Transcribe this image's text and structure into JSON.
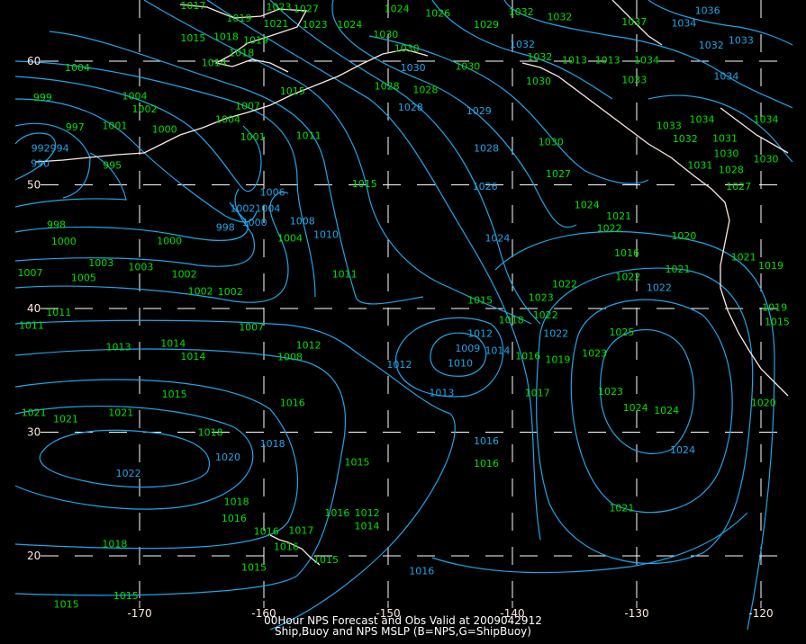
{
  "title": "00Hour NPS Forecast and Obs Valid at 2009042912",
  "subtitle": "Ship,Buoy and NPS MSLP (B=NPS,G=ShipBuoy)",
  "colors": {
    "background": "#000000",
    "nps_contours": "#1ea6e8",
    "ship_buoy_obs": "#00e000",
    "grid_coast": "#ffffff"
  },
  "map": {
    "projection": "Mercator",
    "lon_ticks": [
      -170,
      -160,
      -150,
      -140,
      -130,
      -120
    ],
    "lat_ticks": [
      60,
      50,
      40,
      30,
      20
    ],
    "lon_labels": [
      "-170",
      "-160",
      "-150",
      "-140",
      "-130",
      "-120"
    ],
    "lat_labels": [
      "60",
      "50",
      "40",
      "30",
      "20"
    ]
  },
  "nps_labels": [
    [
      "992994",
      -177.2,
      53.0
    ],
    [
      "990",
      -178.0,
      52.2
    ],
    [
      "998",
      -163.1,
      46.6
    ],
    [
      "10021004",
      -160.7,
      48.1
    ],
    [
      "1000",
      -161.4,
      47.0
    ],
    [
      "1006",
      -159.3,
      49.0
    ],
    [
      "1008",
      -156.9,
      47.1
    ],
    [
      "1010",
      -155.0,
      46.0
    ],
    [
      "1036",
      -124.3,
      64.1
    ],
    [
      "1034",
      -126.2,
      63.1
    ],
    [
      "1032",
      -124.0,
      61.3
    ],
    [
      "1033",
      -121.6,
      61.7
    ],
    [
      "1034",
      -122.8,
      58.8
    ],
    [
      "1032",
      -139.2,
      61.4
    ],
    [
      "1030",
      -148.0,
      59.5
    ],
    [
      "1028",
      -148.2,
      56.3
    ],
    [
      "1029",
      -142.7,
      56.0
    ],
    [
      "1028",
      -142.1,
      53.0
    ],
    [
      "1026",
      -142.2,
      49.9
    ],
    [
      "1024",
      -141.2,
      45.7
    ],
    [
      "1022",
      -136.5,
      38.0
    ],
    [
      "1022",
      -128.2,
      41.7
    ],
    [
      "1020",
      -162.9,
      28.0
    ],
    [
      "1022",
      -170.9,
      26.7
    ],
    [
      "1018",
      -159.3,
      29.1
    ],
    [
      "1016",
      -142.1,
      29.3
    ],
    [
      "1016",
      -147.3,
      18.8
    ],
    [
      "1024",
      -126.3,
      28.6
    ],
    [
      "1012",
      -149.1,
      35.5
    ],
    [
      "1010",
      -144.2,
      35.6
    ],
    [
      "1009",
      -143.6,
      36.8
    ],
    [
      "1012",
      -142.6,
      38.0
    ],
    [
      "1014",
      -141.2,
      37.5
    ],
    [
      "1013",
      -145.7,
      33.2
    ]
  ],
  "obs_labels": [
    [
      "1017",
      -165.7,
      64.5
    ],
    [
      "1019",
      -162.0,
      63.5
    ],
    [
      "1015",
      -165.7,
      61.9
    ],
    [
      "1018",
      -163.7,
      62.0
    ],
    [
      "1019",
      -161.3,
      61.7
    ],
    [
      "1021",
      -159.9,
      62.2
    ],
    [
      "1014",
      -164.0,
      59.9
    ],
    [
      "1018",
      -161.8,
      60.7
    ],
    [
      "1023",
      -158.8,
      64.4
    ],
    [
      "1027",
      -156.6,
      64.7
    ],
    [
      "1023",
      -155.9,
      63.0
    ],
    [
      "1024",
      -154.4,
      63.0
    ],
    [
      "1004",
      -175.0,
      59.5
    ],
    [
      "999",
      -177.8,
      57.1
    ],
    [
      "1004",
      -170.4,
      57.2
    ],
    [
      "1002",
      -169.6,
      56.6
    ],
    [
      "997",
      -175.2,
      54.7
    ],
    [
      "1001",
      -172.0,
      54.8
    ],
    [
      "1000",
      -168.0,
      54.5
    ],
    [
      "995",
      -172.2,
      51.6
    ],
    [
      "1007",
      -161.3,
      56.4
    ],
    [
      "1004",
      -162.9,
      55.3
    ],
    [
      "1001",
      -160.9,
      53.9
    ],
    [
      "1011",
      -156.4,
      54.0
    ],
    [
      "1015",
      -157.7,
      57.6
    ],
    [
      "1015",
      -151.9,
      50.1
    ],
    [
      "1000",
      -167.6,
      45.5
    ],
    [
      "998",
      -176.7,
      46.8
    ],
    [
      "1000",
      -176.1,
      45.9
    ],
    [
      "1003",
      -173.1,
      43.7
    ],
    [
      "1003",
      -169.9,
      43.4
    ],
    [
      "1007",
      -178.8,
      42.9
    ],
    [
      "1005",
      -174.5,
      42.5
    ],
    [
      "1002",
      -166.4,
      42.8
    ],
    [
      "1002",
      -165.1,
      42.3
    ],
    [
      "1002",
      -164.0,
      41.4
    ],
    [
      "1004",
      -157.9,
      45.7
    ],
    [
      "1011",
      -153.5,
      42.8
    ],
    [
      "1011",
      -178.7,
      39.1
    ],
    [
      "1011",
      -176.5,
      39.7
    ],
    [
      "1007",
      -161.0,
      38.5
    ],
    [
      "1013",
      -171.7,
      36.9
    ],
    [
      "1014",
      -167.3,
      37.2
    ],
    [
      "1014",
      -165.7,
      36.6
    ],
    [
      "1008",
      -157.9,
      36.1
    ],
    [
      "1012",
      -156.4,
      36.2
    ],
    [
      "1016",
      -157.7,
      32.4
    ],
    [
      "1015",
      -167.2,
      33.1
    ],
    [
      "1021",
      -178.5,
      31.6
    ],
    [
      "1021",
      -177.9,
      31.1
    ],
    [
      "1021",
      -171.5,
      31.6
    ],
    [
      "1018",
      -164.3,
      30.0
    ],
    [
      "1015",
      -152.5,
      27.6
    ],
    [
      "1018",
      -162.2,
      24.4
    ],
    [
      "1016",
      -162.4,
      23.5
    ],
    [
      "1016",
      -159.8,
      22.0
    ],
    [
      "1016",
      -158.2,
      21.2
    ],
    [
      "1017",
      -157.0,
      21.2
    ],
    [
      "1015",
      -155.0,
      19.7
    ],
    [
      "1015",
      -160.8,
      19.1
    ],
    [
      "1018",
      -172.0,
      21.0
    ],
    [
      "1015",
      -171.1,
      16.8
    ],
    [
      "1015",
      -175.9,
      16.1
    ],
    [
      "1016",
      -154.1,
      23.5
    ],
    [
      "1012",
      -153.0,
      23.5
    ],
    [
      "1014",
      -151.7,
      23.3
    ],
    [
      "1015",
      -142.6,
      40.7
    ],
    [
      "1018",
      -140.1,
      39.1
    ],
    [
      "1016",
      -139.4,
      36.2
    ],
    [
      "1017",
      -138.0,
      33.2
    ],
    [
      "1019",
      -137.0,
      35.9
    ],
    [
      "1016",
      -142.1,
      27.5
    ],
    [
      "1021",
      -131.2,
      23.9
    ],
    [
      "1023",
      -133.4,
      36.4
    ],
    [
      "1025",
      -131.2,
      38.1
    ],
    [
      "1023",
      -132.1,
      33.3
    ],
    [
      "1024",
      -130.1,
      32.0
    ],
    [
      "1024",
      -127.6,
      31.8
    ],
    [
      "1022",
      -135.8,
      42.0
    ],
    [
      "1023",
      -137.7,
      40.9
    ],
    [
      "1022",
      -138.0,
      39.5
    ],
    [
      "1016",
      -130.8,
      44.5
    ],
    [
      "1022",
      -130.7,
      42.6
    ],
    [
      "1022",
      -132.2,
      46.5
    ],
    [
      "1024",
      -134.0,
      48.4
    ],
    [
      "1021",
      -133.4,
      47.5
    ],
    [
      "1027",
      -136.3,
      50.9
    ],
    [
      "1030",
      -136.9,
      53.5
    ],
    [
      "1033",
      -127.4,
      54.8
    ],
    [
      "1032",
      -126.1,
      54.2
    ],
    [
      "1034",
      -125.4,
      55.3
    ],
    [
      "1031",
      -124.9,
      51.6
    ],
    [
      "1031",
      -122.9,
      53.8
    ],
    [
      "1030",
      -122.8,
      53.0
    ],
    [
      "1028",
      -122.4,
      52.1
    ],
    [
      "1027",
      -121.8,
      51.2
    ],
    [
      "1030",
      -119.6,
      52.1
    ],
    [
      "1034",
      -119.6,
      55.3
    ],
    [
      "1021",
      -121.4,
      44.2
    ],
    [
      "1019",
      -119.2,
      43.5
    ],
    [
      "1020",
      -126.2,
      45.9
    ],
    [
      "1021",
      -126.7,
      43.2
    ],
    [
      "1019",
      -118.9,
      40.1
    ],
    [
      "1015",
      -118.7,
      39.4
    ],
    [
      "1020",
      -119.8,
      32.4
    ],
    [
      "1028",
      -150.1,
      58.0
    ],
    [
      "1030",
      -150.2,
      62.2
    ],
    [
      "1030",
      -148.5,
      61.5
    ],
    [
      "1030",
      -143.6,
      59.6
    ],
    [
      "1028",
      -147.0,
      57.7
    ],
    [
      "1026",
      -146.0,
      63.9
    ],
    [
      "1024",
      -149.3,
      64.7
    ],
    [
      "1029",
      -142.1,
      63.0
    ],
    [
      "1032",
      -139.3,
      64.0
    ],
    [
      "1032",
      -136.2,
      63.6
    ],
    [
      "1032",
      -137.8,
      60.8
    ],
    [
      "1013",
      -135.0,
      60.1
    ],
    [
      "1013",
      -133.0,
      60.1
    ],
    [
      "1033",
      -130.2,
      58.5
    ],
    [
      "1034",
      -129.2,
      60.1
    ],
    [
      "1030",
      -137.9,
      58.4
    ],
    [
      "1037",
      -130.2,
      63.2
    ]
  ]
}
